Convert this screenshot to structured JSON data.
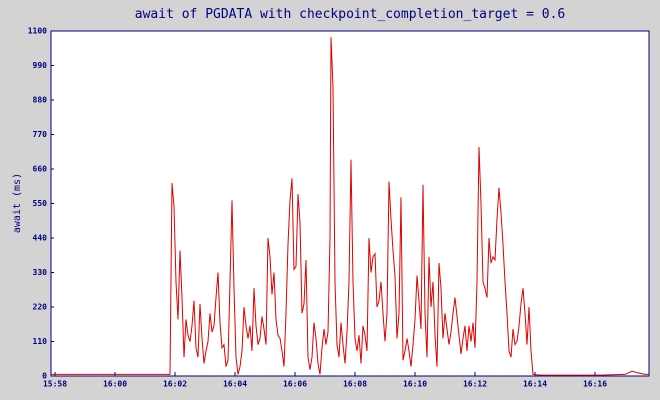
{
  "chart_data": {
    "type": "line",
    "title": "await of PGDATA with checkpoint_completion_target = 0.6",
    "y_label": "await (ms)",
    "color": "#e00000",
    "xlim": [
      57472,
      58668
    ],
    "xticks": [
      {
        "value": 57480,
        "label": "15:58"
      },
      {
        "value": 57600,
        "label": "16:00"
      },
      {
        "value": 57720,
        "label": "16:02"
      },
      {
        "value": 57840,
        "label": "16:04"
      },
      {
        "value": 57960,
        "label": "16:06"
      },
      {
        "value": 58080,
        "label": "16:08"
      },
      {
        "value": 58200,
        "label": "16:10"
      },
      {
        "value": 58320,
        "label": "16:12"
      },
      {
        "value": 58440,
        "label": "16:14"
      },
      {
        "value": 58560,
        "label": "16:16"
      }
    ],
    "ylim": [
      0,
      1100
    ],
    "yticks": [
      0,
      110,
      220,
      330,
      440,
      550,
      660,
      770,
      880,
      990,
      1100
    ],
    "x": [
      57472,
      57570,
      57650,
      57706,
      57710,
      57714,
      57718,
      57722,
      57726,
      57730,
      57734,
      57738,
      57742,
      57746,
      57750,
      57754,
      57758,
      57762,
      57766,
      57770,
      57774,
      57778,
      57782,
      57786,
      57790,
      57794,
      57798,
      57802,
      57806,
      57810,
      57814,
      57818,
      57822,
      57826,
      57830,
      57834,
      57838,
      57842,
      57846,
      57850,
      57854,
      57858,
      57862,
      57866,
      57870,
      57874,
      57878,
      57882,
      57886,
      57890,
      57894,
      57898,
      57902,
      57906,
      57910,
      57914,
      57918,
      57922,
      57926,
      57930,
      57934,
      57938,
      57942,
      57946,
      57950,
      57954,
      57958,
      57962,
      57966,
      57970,
      57974,
      57978,
      57982,
      57986,
      57990,
      57994,
      57998,
      58002,
      58006,
      58010,
      58014,
      58018,
      58022,
      58026,
      58030,
      58032,
      58036,
      58040,
      58044,
      58048,
      58052,
      58056,
      58060,
      58064,
      58068,
      58072,
      58076,
      58080,
      58084,
      58088,
      58092,
      58096,
      58100,
      58104,
      58108,
      58112,
      58116,
      58120,
      58124,
      58128,
      58132,
      58136,
      58140,
      58144,
      58148,
      58152,
      58156,
      58160,
      58164,
      58168,
      58172,
      58176,
      58180,
      58184,
      58188,
      58192,
      58196,
      58200,
      58204,
      58208,
      58212,
      58216,
      58220,
      58224,
      58228,
      58232,
      58236,
      58240,
      58244,
      58248,
      58252,
      58256,
      58260,
      58264,
      58268,
      58272,
      58276,
      58280,
      58284,
      58288,
      58292,
      58296,
      58300,
      58304,
      58308,
      58312,
      58316,
      58320,
      58324,
      58328,
      58332,
      58336,
      58340,
      58344,
      58348,
      58352,
      58356,
      58360,
      58364,
      58368,
      58372,
      58376,
      58380,
      58384,
      58388,
      58392,
      58396,
      58400,
      58404,
      58408,
      58412,
      58416,
      58420,
      58424,
      58428,
      58432,
      58436,
      58450,
      58570,
      58620,
      58634,
      58646,
      58660,
      58668
    ],
    "values": [
      5,
      5,
      5,
      5,
      5,
      615,
      540,
      300,
      180,
      400,
      250,
      60,
      180,
      130,
      110,
      160,
      240,
      90,
      60,
      230,
      120,
      40,
      80,
      110,
      200,
      140,
      160,
      250,
      330,
      170,
      90,
      100,
      30,
      50,
      300,
      560,
      280,
      60,
      5,
      30,
      80,
      220,
      160,
      120,
      160,
      80,
      280,
      160,
      100,
      120,
      190,
      150,
      100,
      440,
      380,
      260,
      330,
      180,
      130,
      120,
      80,
      30,
      200,
      420,
      560,
      630,
      340,
      350,
      580,
      490,
      200,
      230,
      370,
      60,
      20,
      60,
      170,
      120,
      40,
      5,
      90,
      150,
      100,
      140,
      440,
      1080,
      920,
      300,
      100,
      60,
      170,
      100,
      40,
      140,
      300,
      690,
      300,
      120,
      80,
      130,
      40,
      160,
      130,
      80,
      440,
      330,
      380,
      390,
      220,
      240,
      300,
      200,
      110,
      200,
      620,
      500,
      400,
      320,
      120,
      200,
      570,
      50,
      80,
      120,
      80,
      30,
      100,
      180,
      320,
      240,
      150,
      610,
      200,
      60,
      380,
      220,
      300,
      130,
      30,
      360,
      280,
      120,
      200,
      150,
      100,
      140,
      200,
      250,
      190,
      130,
      70,
      120,
      160,
      80,
      160,
      110,
      170,
      90,
      300,
      730,
      550,
      300,
      280,
      250,
      440,
      360,
      380,
      370,
      500,
      600,
      520,
      420,
      300,
      200,
      80,
      60,
      150,
      100,
      110,
      160,
      230,
      280,
      200,
      100,
      220,
      80,
      5,
      3,
      3,
      5,
      15,
      10,
      5,
      5
    ]
  }
}
